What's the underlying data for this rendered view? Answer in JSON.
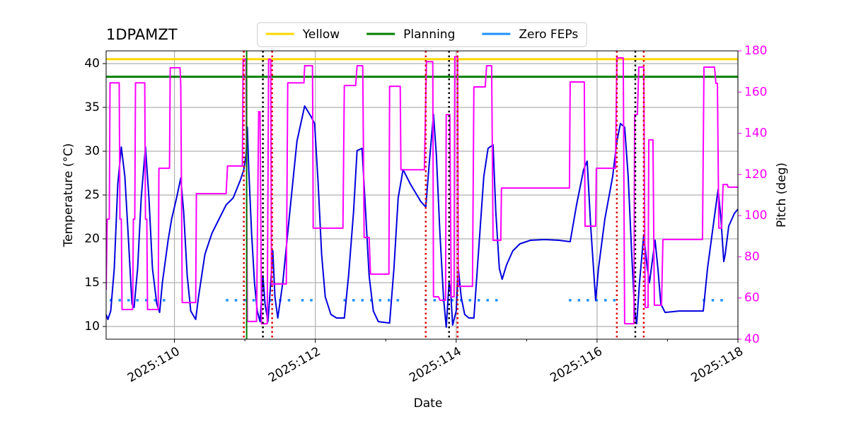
{
  "chart_data": {
    "type": "line",
    "title": "1DPAMZT",
    "xlabel": "Date",
    "ylabel": "Temperature (°C)",
    "y2label": "Pitch (deg)",
    "xlim": [
      109.03,
      118
    ],
    "ylim": [
      8.55,
      41.45
    ],
    "y2lim": [
      40,
      180
    ],
    "xticks": [
      {
        "value": 110,
        "label": "2025:110"
      },
      {
        "value": 112,
        "label": "2025:112"
      },
      {
        "value": 114,
        "label": "2025:114"
      },
      {
        "value": 116,
        "label": "2025:116"
      },
      {
        "value": 118,
        "label": "2025:118"
      }
    ],
    "xminorticks": [
      111,
      113,
      115,
      117
    ],
    "yticks": [
      10,
      15,
      20,
      25,
      30,
      35,
      40
    ],
    "y2ticks": [
      40,
      60,
      80,
      100,
      120,
      140,
      160,
      180
    ],
    "y2color": "#ff00ff",
    "grid": true,
    "legend": "upper center",
    "series": [
      {
        "color": "#0000dd",
        "x": [
          109.03,
          109.055,
          109.095,
          109.146,
          109.196,
          109.246,
          109.296,
          109.347,
          109.397,
          109.427,
          109.477,
          109.528,
          109.588,
          109.638,
          109.688,
          109.749,
          109.789,
          109.829,
          109.91,
          109.96,
          110.03,
          110.09,
          110.131,
          110.181,
          110.231,
          110.302,
          110.342,
          110.432,
          110.533,
          110.633,
          110.734,
          110.834,
          110.935,
          110.985,
          111.015,
          111.035,
          111.055,
          111.095,
          111.136,
          111.176,
          111.216,
          111.256,
          111.286,
          111.327,
          111.367,
          111.397,
          111.427,
          111.467,
          111.538,
          111.638,
          111.739,
          111.849,
          111.94,
          111.99,
          112.04,
          112.09,
          112.141,
          112.221,
          112.302,
          112.412,
          112.472,
          112.543,
          112.593,
          112.663,
          112.714,
          112.764,
          112.824,
          112.894,
          113.055,
          113.116,
          113.176,
          113.246,
          113.347,
          113.497,
          113.568,
          113.618,
          113.678,
          113.719,
          113.769,
          113.819,
          113.859,
          113.899,
          113.92,
          113.95,
          114.0,
          114.03,
          114.07,
          114.121,
          114.181,
          114.251,
          114.322,
          114.392,
          114.452,
          114.523,
          114.563,
          114.613,
          114.653,
          114.714,
          114.804,
          114.905,
          115.055,
          115.256,
          115.457,
          115.618,
          115.709,
          115.809,
          115.859,
          115.91,
          115.98,
          116.02,
          116.111,
          116.221,
          116.281,
          116.332,
          116.392,
          116.442,
          116.492,
          116.533,
          116.563,
          116.603,
          116.663,
          116.714,
          116.744,
          116.784,
          116.824,
          116.864,
          116.905,
          116.965,
          117.166,
          117.508,
          117.568,
          117.648,
          117.719,
          117.759,
          117.799,
          117.819,
          117.869,
          117.95,
          118.0
        ],
        "values": [
          11.37,
          10.81,
          11.77,
          16.61,
          26.29,
          30.48,
          27.1,
          19.84,
          12.58,
          12.18,
          16.61,
          24.68,
          30.48,
          24.68,
          16.61,
          12.58,
          11.61,
          15.0,
          19.84,
          22.26,
          24.68,
          26.94,
          23.06,
          15.81,
          11.77,
          10.81,
          13.39,
          18.23,
          20.65,
          22.26,
          23.87,
          24.68,
          26.69,
          27.9,
          29.52,
          32.74,
          27.9,
          20.65,
          15.0,
          11.77,
          10.56,
          15.81,
          12.58,
          10.56,
          15.0,
          18.63,
          13.39,
          10.97,
          15.0,
          23.06,
          31.13,
          35.16,
          33.95,
          33.15,
          26.29,
          18.23,
          13.39,
          11.37,
          10.97,
          10.97,
          15.81,
          23.06,
          30.08,
          30.32,
          23.06,
          15.81,
          11.77,
          10.56,
          10.4,
          16.61,
          24.68,
          27.9,
          26.29,
          24.27,
          23.63,
          28.71,
          34.19,
          29.52,
          20.65,
          13.39,
          9.92,
          15.0,
          14.19,
          10.16,
          11.77,
          16.61,
          13.39,
          11.37,
          10.97,
          10.97,
          19.03,
          27.1,
          30.32,
          30.73,
          23.06,
          16.61,
          15.4,
          17.02,
          18.63,
          19.44,
          19.84,
          19.92,
          19.84,
          19.68,
          23.87,
          27.9,
          28.87,
          21.45,
          12.98,
          16.61,
          22.26,
          27.1,
          31.13,
          33.15,
          32.74,
          27.1,
          18.23,
          11.77,
          10.32,
          15.0,
          20.48,
          16.61,
          15.0,
          17.42,
          19.84,
          16.61,
          12.58,
          11.61,
          11.77,
          11.77,
          16.61,
          21.45,
          25.65,
          22.26,
          17.42,
          18.23,
          21.45,
          22.9,
          23.39
        ]
      },
      {
        "color": "#ff00ff",
        "axis": "y2",
        "x": [
          109.03,
          109.045,
          109.075,
          109.085,
          109.216,
          109.226,
          109.246,
          109.256,
          109.407,
          109.417,
          109.437,
          109.447,
          109.578,
          109.588,
          109.608,
          109.618,
          109.769,
          109.779,
          109.93,
          109.94,
          110.08,
          110.09,
          110.111,
          110.302,
          110.312,
          110.734,
          110.754,
          110.965,
          110.975,
          111.015,
          111.035,
          111.166,
          111.196,
          111.216,
          111.236,
          111.317,
          111.337,
          111.367,
          111.377,
          111.588,
          111.608,
          111.839,
          111.849,
          111.96,
          111.97,
          112.392,
          112.412,
          112.573,
          112.593,
          112.673,
          112.693,
          112.764,
          112.784,
          113.045,
          113.055,
          113.206,
          113.216,
          113.548,
          113.578,
          113.668,
          113.678,
          113.749,
          113.769,
          113.849,
          113.859,
          113.91,
          113.93,
          113.97,
          113.98,
          114.02,
          114.03,
          114.231,
          114.251,
          114.412,
          114.432,
          114.503,
          114.523,
          114.633,
          114.643,
          115.608,
          115.618,
          115.819,
          115.829,
          115.98,
          115.99,
          116.261,
          116.281,
          116.372,
          116.392,
          116.523,
          116.533,
          116.573,
          116.593,
          116.663,
          116.683,
          116.724,
          116.734,
          116.794,
          116.814,
          116.915,
          116.935,
          117.497,
          117.518,
          117.668,
          117.688,
          117.709,
          117.729,
          117.769,
          117.789,
          117.849,
          117.859,
          118.0
        ],
        "values": [
          64.0,
          98.3,
          98.3,
          164.5,
          164.5,
          98.3,
          98.3,
          54.4,
          54.4,
          98.3,
          98.3,
          164.5,
          164.5,
          98.3,
          98.3,
          54.4,
          54.4,
          123.0,
          123.0,
          171.8,
          171.8,
          163.5,
          57.8,
          57.8,
          110.7,
          110.7,
          124.1,
          124.1,
          175.9,
          175.9,
          48.6,
          48.6,
          150.5,
          150.5,
          47.5,
          47.5,
          175.9,
          175.9,
          66.8,
          66.8,
          164.5,
          164.5,
          172.8,
          172.8,
          93.9,
          93.9,
          163.2,
          163.2,
          172.8,
          172.8,
          89.4,
          89.4,
          71.6,
          71.6,
          162.8,
          162.8,
          122.3,
          122.3,
          174.8,
          174.8,
          60.6,
          60.6,
          58.9,
          58.9,
          149.1,
          149.1,
          60.6,
          60.6,
          177.2,
          177.2,
          65.7,
          65.7,
          162.5,
          162.5,
          172.8,
          172.8,
          88.0,
          88.0,
          113.4,
          113.4,
          164.9,
          164.9,
          94.9,
          94.9,
          123.0,
          123.0,
          176.6,
          176.6,
          47.5,
          47.5,
          149.1,
          149.1,
          172.1,
          172.1,
          55.4,
          55.4,
          136.8,
          136.8,
          56.5,
          56.5,
          88.4,
          88.4,
          172.1,
          172.1,
          164.2,
          164.2,
          93.9,
          93.9,
          115.1,
          115.1,
          113.8,
          113.8
        ]
      }
    ],
    "hlines": [
      {
        "name": "Yellow",
        "color": "#ffd700",
        "value": 40.5
      },
      {
        "name": "Planning",
        "color": "#008000",
        "value": 38.5
      }
    ],
    "zero_feps": {
      "name": "Zero FEPs",
      "color": "#1e90ff",
      "value": 13,
      "intervals": [
        [
          109.08,
          109.93
        ],
        [
          110.73,
          111.65
        ],
        [
          111.8,
          112.0
        ],
        [
          112.4,
          113.2
        ],
        [
          113.55,
          114.65
        ],
        [
          115.6,
          116.35
        ],
        [
          117.5,
          117.87
        ]
      ]
    },
    "vlines": [
      {
        "x": 110.985,
        "color": "#dd0000",
        "style": "dotted"
      },
      {
        "x": 111.025,
        "color": "#008000",
        "style": "solid"
      },
      {
        "x": 111.256,
        "color": "#000000",
        "style": "dotted"
      },
      {
        "x": 111.387,
        "color": "#dd0000",
        "style": "dotted"
      },
      {
        "x": 113.568,
        "color": "#dd0000",
        "style": "dotted"
      },
      {
        "x": 113.899,
        "color": "#000000",
        "style": "dotted"
      },
      {
        "x": 114.02,
        "color": "#dd0000",
        "style": "dotted"
      },
      {
        "x": 116.281,
        "color": "#dd0000",
        "style": "dotted"
      },
      {
        "x": 116.543,
        "color": "#000000",
        "style": "dotted"
      },
      {
        "x": 116.663,
        "color": "#dd0000",
        "style": "dotted"
      }
    ]
  }
}
